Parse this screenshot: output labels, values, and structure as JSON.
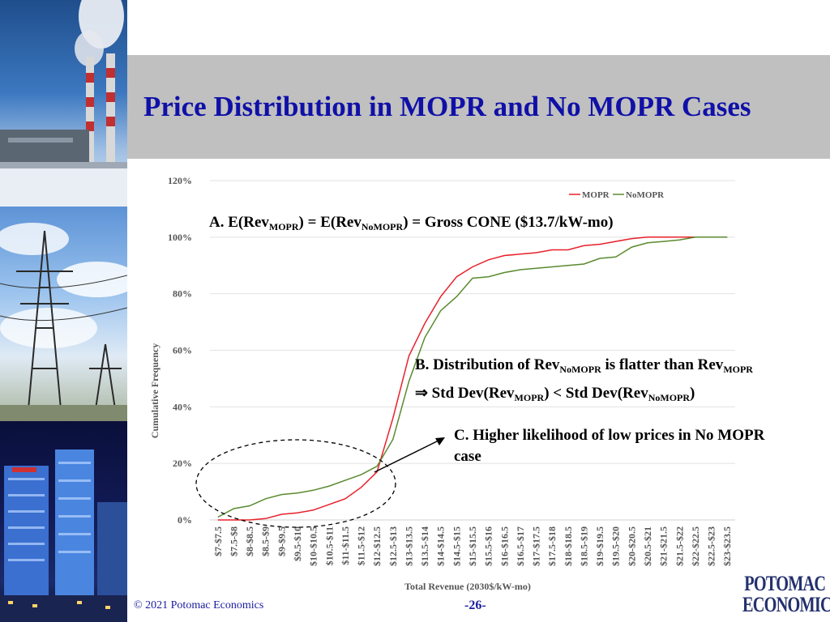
{
  "slide": {
    "title": "Price Distribution in MOPR and No MOPR Cases",
    "footer": "© 2021 Potomac Economics",
    "page_number": "-26-",
    "logo_line1": "POTOMAC",
    "logo_line2": "ECONOMICS"
  },
  "annotations": {
    "a": {
      "p1": "A. E(Rev",
      "s1": "MOPR",
      "p2": ") = E(Rev",
      "s2": "NoMOPR",
      "p3": ") = Gross CONE ($13.7/kW-mo)"
    },
    "b_line1": {
      "p1": "B. Distribution of Rev",
      "s1": "NoMOPR",
      "p2": " is flatter than Rev",
      "s2": "MOPR"
    },
    "b_line2": {
      "p1": "⇒  Std Dev(Rev",
      "s1": "MOPR",
      "p2": ") < Std Dev(Rev",
      "s2": "NoMOPR",
      "p3": ")"
    },
    "c": "C. Higher likelihood of low prices in No MOPR case"
  },
  "colors": {
    "mopr": "#e8202a",
    "nomopr": "#5a8a30",
    "title": "#1010a8"
  },
  "chart_data": {
    "type": "line",
    "xlabel": "Total Revenue (2030$/kW-mo)",
    "ylabel": "Cumulative Frequency",
    "ylim": [
      0,
      1.2
    ],
    "yticks": [
      0,
      0.2,
      0.4,
      0.6,
      0.8,
      1.0,
      1.2
    ],
    "ytick_labels": [
      "0%",
      "20%",
      "40%",
      "60%",
      "80%",
      "100%",
      "120%"
    ],
    "legend_position": "top-right",
    "grid": true,
    "categories": [
      "$7-$7.5",
      "$7.5-$8",
      "$8-$8.5",
      "$8.5-$9",
      "$9-$9.5",
      "$9.5-$10",
      "$10-$10.5",
      "$10.5-$11",
      "$11-$11.5",
      "$11.5-$12",
      "$12-$12.5",
      "$12.5-$13",
      "$13-$13.5",
      "$13.5-$14",
      "$14-$14.5",
      "$14.5-$15",
      "$15-$15.5",
      "$15.5-$16",
      "$16-$16.5",
      "$16.5-$17",
      "$17-$17.5",
      "$17.5-$18",
      "$18-$18.5",
      "$18.5-$19",
      "$19-$19.5",
      "$19.5-$20",
      "$20-$20.5",
      "$20.5-$21",
      "$21-$21.5",
      "$21.5-$22",
      "$22-$22.5",
      "$22.5-$23",
      "$23-$23.5"
    ],
    "series": [
      {
        "name": "MOPR",
        "values": [
          0.0,
          0.0,
          0.0,
          0.005,
          0.02,
          0.025,
          0.035,
          0.055,
          0.075,
          0.115,
          0.17,
          0.36,
          0.58,
          0.695,
          0.79,
          0.86,
          0.895,
          0.92,
          0.935,
          0.94,
          0.945,
          0.955,
          0.955,
          0.97,
          0.975,
          0.985,
          0.995,
          1.0,
          1.0,
          1.0,
          1.0,
          1.0,
          1.0
        ]
      },
      {
        "name": "NoMOPR",
        "values": [
          0.01,
          0.04,
          0.05,
          0.075,
          0.09,
          0.095,
          0.105,
          0.12,
          0.14,
          0.16,
          0.19,
          0.285,
          0.49,
          0.645,
          0.74,
          0.79,
          0.855,
          0.86,
          0.875,
          0.885,
          0.89,
          0.895,
          0.9,
          0.905,
          0.925,
          0.93,
          0.965,
          0.98,
          0.985,
          0.99,
          1.0,
          1.0,
          1.0
        ]
      }
    ]
  }
}
